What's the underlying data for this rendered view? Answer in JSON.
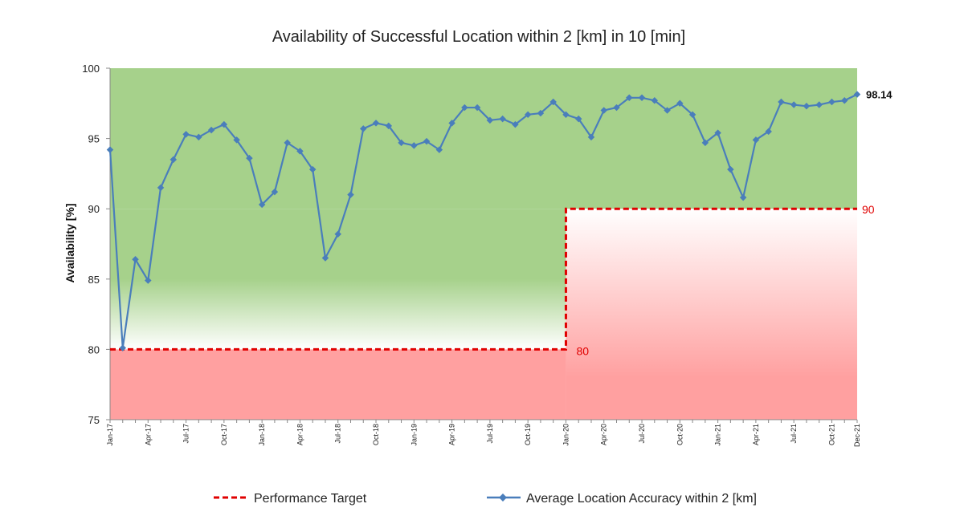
{
  "chart_data": {
    "type": "line",
    "title": "Availability of Successful Location within 2 [km] in 10 [min]",
    "ylabel": "Availability [%]",
    "xlabel": "",
    "ylim": [
      75,
      100
    ],
    "yticks": [
      75,
      80,
      85,
      90,
      95,
      100
    ],
    "x": [
      "Jan-17",
      "Feb-17",
      "Mar-17",
      "Apr-17",
      "May-17",
      "Jun-17",
      "Jul-17",
      "Aug-17",
      "Sep-17",
      "Oct-17",
      "Nov-17",
      "Dec-17",
      "Jan-18",
      "Feb-18",
      "Mar-18",
      "Apr-18",
      "May-18",
      "Jun-18",
      "Jul-18",
      "Aug-18",
      "Sep-18",
      "Oct-18",
      "Nov-18",
      "Dec-18",
      "Jan-19",
      "Feb-19",
      "Mar-19",
      "Apr-19",
      "May-19",
      "Jun-19",
      "Jul-19",
      "Aug-19",
      "Sep-19",
      "Oct-19",
      "Nov-19",
      "Dec-19",
      "Jan-20",
      "Feb-20",
      "Mar-20",
      "Apr-20",
      "May-20",
      "Jun-20",
      "Jul-20",
      "Aug-20",
      "Sep-20",
      "Oct-20",
      "Nov-20",
      "Dec-20",
      "Jan-21",
      "Feb-21",
      "Mar-21",
      "Apr-21",
      "May-21",
      "Jun-21",
      "Jul-21",
      "Aug-21",
      "Sep-21",
      "Oct-21",
      "Nov-21",
      "Dec-21"
    ],
    "xtick_labels": [
      "Jan-17",
      "Apr-17",
      "Jul-17",
      "Oct-17",
      "Jan-18",
      "Apr-18",
      "Jul-18",
      "Oct-18",
      "Jan-19",
      "Apr-19",
      "Jul-19",
      "Oct-19",
      "Jan-20",
      "Apr-20",
      "Jul-20",
      "Oct-20",
      "Jan-21",
      "Apr-21",
      "Jul-21",
      "Oct-21",
      "Dec-21"
    ],
    "series": [
      {
        "name": "Average Location Accuracy within 2 [km]",
        "color": "#4a7ebb",
        "marker": "diamond",
        "values": [
          94.2,
          80.1,
          86.4,
          84.9,
          91.5,
          93.5,
          95.3,
          95.1,
          95.6,
          96.0,
          94.9,
          93.6,
          90.3,
          91.2,
          94.7,
          94.1,
          92.8,
          86.5,
          88.2,
          91.0,
          95.7,
          96.1,
          95.9,
          94.7,
          94.5,
          94.8,
          94.2,
          96.1,
          97.2,
          97.2,
          96.3,
          96.4,
          96.0,
          96.7,
          96.8,
          97.6,
          96.7,
          96.4,
          95.1,
          97.0,
          97.2,
          97.9,
          97.9,
          97.7,
          97.0,
          97.5,
          96.7,
          94.7,
          95.4,
          92.8,
          90.8,
          94.9,
          95.5,
          97.6,
          97.4,
          97.3,
          97.4,
          97.6,
          97.7,
          98.14
        ]
      },
      {
        "name": "Performance Target",
        "color": "#e00000",
        "style": "dashed",
        "steps": [
          {
            "from": "Jan-17",
            "to": "Jan-20",
            "value": 80
          },
          {
            "from": "Jan-20",
            "to": "Dec-21",
            "value": 90
          }
        ]
      }
    ],
    "annotations": {
      "last_value_label": "98.14",
      "target_labels": [
        "80",
        "90"
      ]
    },
    "legend": {
      "position": "bottom",
      "entries": [
        "Performance Target",
        "Average Location Accuracy within 2 [km]"
      ]
    },
    "colors": {
      "green": "#a6d18b",
      "red": "#ffa0a0",
      "line": "#4a7ebb",
      "target": "#e00000"
    },
    "grid": false
  }
}
